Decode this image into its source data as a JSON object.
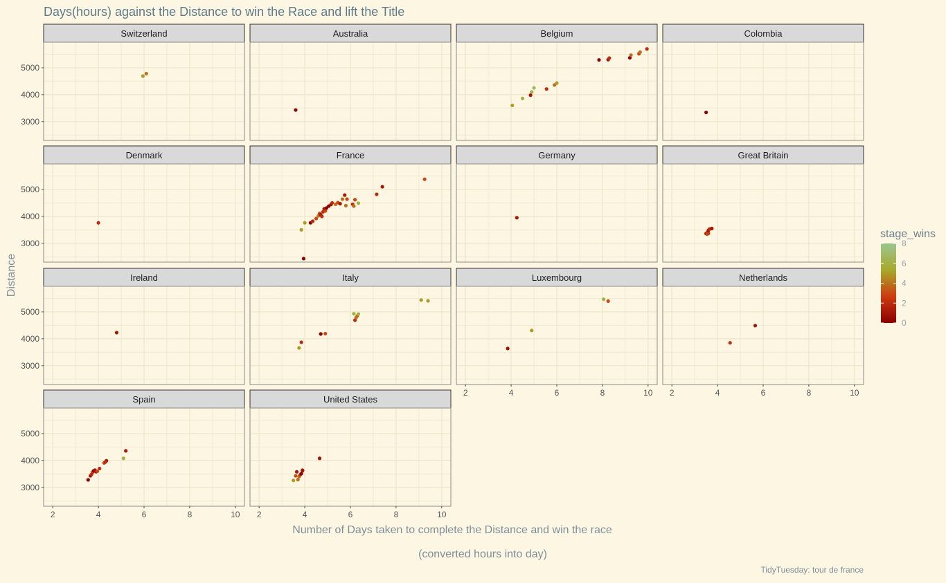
{
  "title": "Days(hours) against the Distance to win the Race and lift the Title",
  "caption": "TidyTuesday: tour de france",
  "chart_data": {
    "type": "scatter",
    "title": "Days(hours) against the Distance to win the Race and lift the Title",
    "xlabel": "Number of Days taken to complete the Distance and win the race",
    "xlabel_line2": "(converted hours into day)",
    "ylabel": "Distance",
    "xlim": [
      1.6,
      10.4
    ],
    "ylim": [
      2300,
      5950
    ],
    "xticks": [
      2,
      4,
      6,
      8,
      10
    ],
    "yticks": [
      3000,
      4000,
      5000
    ],
    "grid": true,
    "legend": {
      "title": "stage_wins",
      "position": "right",
      "min": 0,
      "max": 8,
      "ticks": [
        0,
        2,
        4,
        6,
        8
      ],
      "colors": [
        "#8b0000",
        "#cc3a10",
        "#a8a82a",
        "#99c78e"
      ]
    },
    "facets": [
      {
        "name": "Switzerland",
        "points": [
          [
            5.95,
            4690,
            5
          ],
          [
            6.1,
            4780,
            4
          ]
        ]
      },
      {
        "name": "Australia",
        "points": [
          [
            3.6,
            3430,
            0
          ]
        ]
      },
      {
        "name": "Belgium",
        "points": [
          [
            4.05,
            3600,
            5
          ],
          [
            4.5,
            3860,
            6
          ],
          [
            4.85,
            3980,
            1
          ],
          [
            4.9,
            4100,
            6
          ],
          [
            5.0,
            4250,
            7
          ],
          [
            5.55,
            4210,
            2
          ],
          [
            5.9,
            4360,
            4
          ],
          [
            6.0,
            4430,
            5
          ],
          [
            7.85,
            5290,
            0
          ],
          [
            8.25,
            5300,
            1
          ],
          [
            8.3,
            5360,
            2
          ],
          [
            9.2,
            5370,
            0
          ],
          [
            9.25,
            5470,
            4
          ],
          [
            9.6,
            5520,
            3
          ],
          [
            9.65,
            5580,
            4
          ],
          [
            9.95,
            5700,
            2
          ]
        ]
      },
      {
        "name": "Colombia",
        "points": [
          [
            3.5,
            3340,
            0
          ]
        ]
      },
      {
        "name": "Denmark",
        "points": [
          [
            4.0,
            3760,
            2
          ]
        ]
      },
      {
        "name": "France",
        "points": [
          [
            3.85,
            3500,
            5
          ],
          [
            3.95,
            2430,
            0
          ],
          [
            4.0,
            3760,
            5
          ],
          [
            4.25,
            3760,
            0
          ],
          [
            4.35,
            3820,
            2
          ],
          [
            4.5,
            3920,
            3
          ],
          [
            4.6,
            4020,
            4
          ],
          [
            4.65,
            4110,
            3
          ],
          [
            4.7,
            4060,
            1
          ],
          [
            4.75,
            4000,
            2
          ],
          [
            4.8,
            4170,
            2
          ],
          [
            4.85,
            4280,
            1
          ],
          [
            4.9,
            4200,
            3
          ],
          [
            4.95,
            4310,
            0
          ],
          [
            5.05,
            4380,
            0
          ],
          [
            5.15,
            4440,
            1
          ],
          [
            5.2,
            4500,
            2
          ],
          [
            5.35,
            4450,
            4
          ],
          [
            5.45,
            4510,
            3
          ],
          [
            5.55,
            4470,
            1
          ],
          [
            5.65,
            4640,
            4
          ],
          [
            5.75,
            4790,
            1
          ],
          [
            5.8,
            4400,
            4
          ],
          [
            5.85,
            4640,
            3
          ],
          [
            6.1,
            4450,
            2
          ],
          [
            6.15,
            4380,
            4
          ],
          [
            6.2,
            4620,
            3
          ],
          [
            6.35,
            4490,
            6
          ],
          [
            7.15,
            4820,
            2
          ],
          [
            7.4,
            5100,
            1
          ],
          [
            9.25,
            5380,
            3
          ]
        ]
      },
      {
        "name": "Germany",
        "points": [
          [
            4.25,
            3950,
            1
          ]
        ]
      },
      {
        "name": "Great Britain",
        "points": [
          [
            3.5,
            3360,
            1
          ],
          [
            3.55,
            3400,
            2
          ],
          [
            3.6,
            3480,
            1
          ],
          [
            3.6,
            3370,
            2
          ],
          [
            3.65,
            3530,
            2
          ],
          [
            3.75,
            3550,
            1
          ],
          [
            3.55,
            3340,
            3
          ]
        ]
      },
      {
        "name": "Ireland",
        "points": [
          [
            4.8,
            4230,
            1
          ]
        ]
      },
      {
        "name": "Italy",
        "points": [
          [
            3.75,
            3660,
            5
          ],
          [
            3.85,
            3870,
            2
          ],
          [
            4.7,
            4180,
            0
          ],
          [
            4.9,
            4190,
            3
          ],
          [
            6.15,
            4930,
            6
          ],
          [
            6.2,
            4690,
            2
          ],
          [
            6.25,
            4790,
            4
          ],
          [
            6.3,
            4850,
            4
          ],
          [
            6.35,
            4920,
            6
          ],
          [
            9.1,
            5440,
            5
          ],
          [
            9.4,
            5410,
            5
          ]
        ]
      },
      {
        "name": "Luxembourg",
        "points": [
          [
            3.85,
            3640,
            1
          ],
          [
            4.9,
            4310,
            5
          ],
          [
            8.05,
            5470,
            6
          ],
          [
            8.25,
            5400,
            3
          ]
        ]
      },
      {
        "name": "Netherlands",
        "points": [
          [
            4.55,
            3850,
            2
          ],
          [
            5.65,
            4490,
            1
          ]
        ]
      },
      {
        "name": "Spain",
        "points": [
          [
            3.55,
            3280,
            0
          ],
          [
            3.65,
            3430,
            1
          ],
          [
            3.7,
            3480,
            2
          ],
          [
            3.75,
            3570,
            2
          ],
          [
            3.8,
            3620,
            0
          ],
          [
            3.85,
            3640,
            1
          ],
          [
            3.9,
            3580,
            1
          ],
          [
            3.95,
            3600,
            3
          ],
          [
            4.05,
            3700,
            2
          ],
          [
            4.25,
            3910,
            3
          ],
          [
            4.35,
            3990,
            1
          ],
          [
            4.3,
            3940,
            2
          ],
          [
            5.1,
            4080,
            6
          ],
          [
            5.2,
            4360,
            1
          ]
        ]
      },
      {
        "name": "United States",
        "points": [
          [
            3.5,
            3260,
            5
          ],
          [
            3.6,
            3430,
            3
          ],
          [
            3.65,
            3580,
            1
          ],
          [
            3.7,
            3290,
            4
          ],
          [
            3.75,
            3400,
            4
          ],
          [
            3.8,
            3470,
            2
          ],
          [
            3.85,
            3510,
            0
          ],
          [
            3.9,
            3640,
            2
          ],
          [
            3.9,
            3620,
            1
          ],
          [
            4.65,
            4080,
            1
          ]
        ]
      }
    ]
  }
}
